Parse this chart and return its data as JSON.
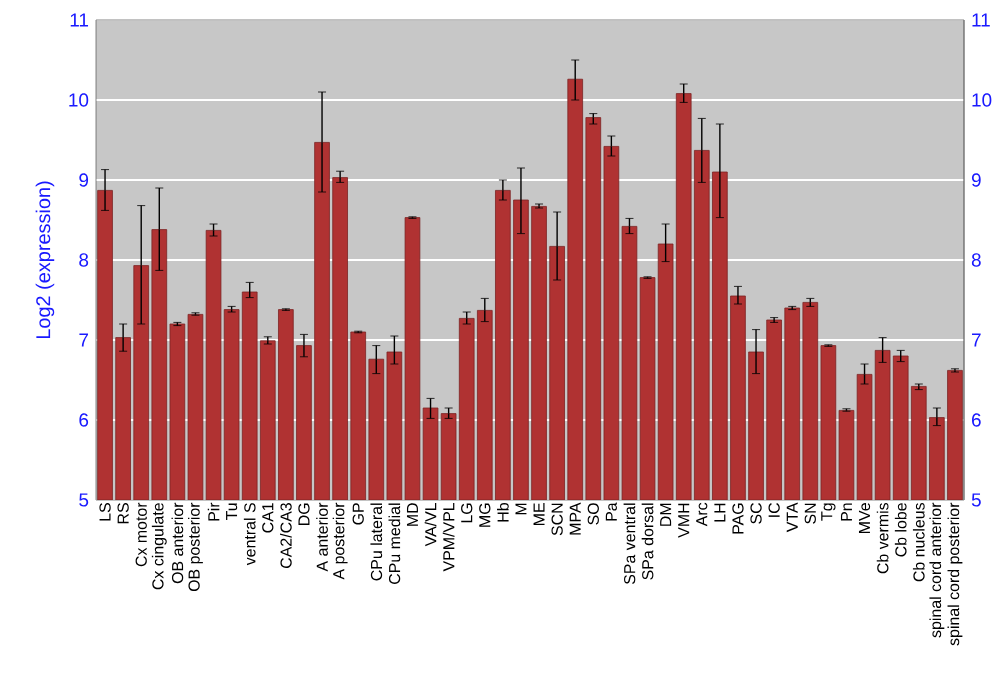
{
  "chart_data": {
    "type": "bar",
    "ylabel": "Log2 (expression)",
    "categories": [
      "LS",
      "RS",
      "Cx motor",
      "Cx cingulate",
      "OB anterior",
      "OB posterior",
      "Pir",
      "Tu",
      "ventral S",
      "CA1",
      "CA2/CA3",
      "DG",
      "A anterior",
      "A posterior",
      "GP",
      "CPu lateral",
      "CPu medial",
      "MD",
      "VA/VL",
      "VPM/VPL",
      "LG",
      "MG",
      "Hb",
      "M",
      "ME",
      "SCN",
      "MPA",
      "SO",
      "Pa",
      "SPa ventral",
      "SPa dorsal",
      "DM",
      "VMH",
      "Arc",
      "LH",
      "PAG",
      "SC",
      "IC",
      "VTA",
      "SN",
      "Tg",
      "Pn",
      "MVe",
      "Cb vermis",
      "Cb lobe",
      "Cb nucleus",
      "spinal cord anterior",
      "spinal cord posterior"
    ],
    "values": [
      8.87,
      7.03,
      7.93,
      8.38,
      7.2,
      7.32,
      8.37,
      7.38,
      7.6,
      6.99,
      7.38,
      6.93,
      9.47,
      9.03,
      7.1,
      6.76,
      6.85,
      8.53,
      6.15,
      6.08,
      7.27,
      7.37,
      8.87,
      8.75,
      8.67,
      8.17,
      10.26,
      9.78,
      9.42,
      8.42,
      7.78,
      8.2,
      10.08,
      9.37,
      9.1,
      7.55,
      6.85,
      7.25,
      7.4,
      7.47,
      6.93,
      6.12,
      6.57,
      6.87,
      6.8,
      6.42,
      6.03,
      6.62
    ],
    "errors": [
      [
        8.62,
        9.13
      ],
      [
        6.86,
        7.2
      ],
      [
        7.2,
        8.68
      ],
      [
        7.87,
        8.9
      ],
      [
        7.18,
        7.22
      ],
      [
        7.31,
        7.34
      ],
      [
        8.3,
        8.45
      ],
      [
        7.35,
        7.42
      ],
      [
        7.53,
        7.72
      ],
      [
        6.95,
        7.04
      ],
      [
        7.37,
        7.39
      ],
      [
        6.79,
        7.07
      ],
      [
        8.85,
        10.1
      ],
      [
        8.97,
        9.11
      ],
      [
        7.09,
        7.11
      ],
      [
        6.58,
        6.93
      ],
      [
        6.7,
        7.05
      ],
      [
        8.52,
        8.54
      ],
      [
        6.02,
        6.27
      ],
      [
        6.02,
        6.15
      ],
      [
        7.2,
        7.35
      ],
      [
        7.23,
        7.52
      ],
      [
        8.75,
        9.0
      ],
      [
        8.33,
        9.15
      ],
      [
        8.65,
        8.7
      ],
      [
        7.75,
        8.6
      ],
      [
        10.0,
        10.5
      ],
      [
        9.7,
        9.83
      ],
      [
        9.3,
        9.55
      ],
      [
        8.33,
        8.52
      ],
      [
        7.77,
        7.79
      ],
      [
        7.98,
        8.45
      ],
      [
        9.97,
        10.2
      ],
      [
        8.97,
        9.77
      ],
      [
        8.53,
        9.7
      ],
      [
        7.45,
        7.67
      ],
      [
        6.58,
        7.13
      ],
      [
        7.22,
        7.28
      ],
      [
        7.38,
        7.42
      ],
      [
        7.42,
        7.52
      ],
      [
        6.92,
        6.94
      ],
      [
        6.11,
        6.14
      ],
      [
        6.45,
        6.7
      ],
      [
        6.72,
        7.03
      ],
      [
        6.73,
        6.87
      ],
      [
        6.38,
        6.45
      ],
      [
        5.93,
        6.15
      ],
      [
        6.6,
        6.64
      ]
    ],
    "color": "#b03232",
    "ylim": [
      5,
      11
    ],
    "yticks": [
      5,
      6,
      7,
      8,
      9,
      10,
      11
    ],
    "y2lim": [
      5,
      11
    ],
    "y2ticks": [
      5,
      6,
      7,
      8,
      9,
      10,
      11
    ],
    "grid": "y"
  }
}
